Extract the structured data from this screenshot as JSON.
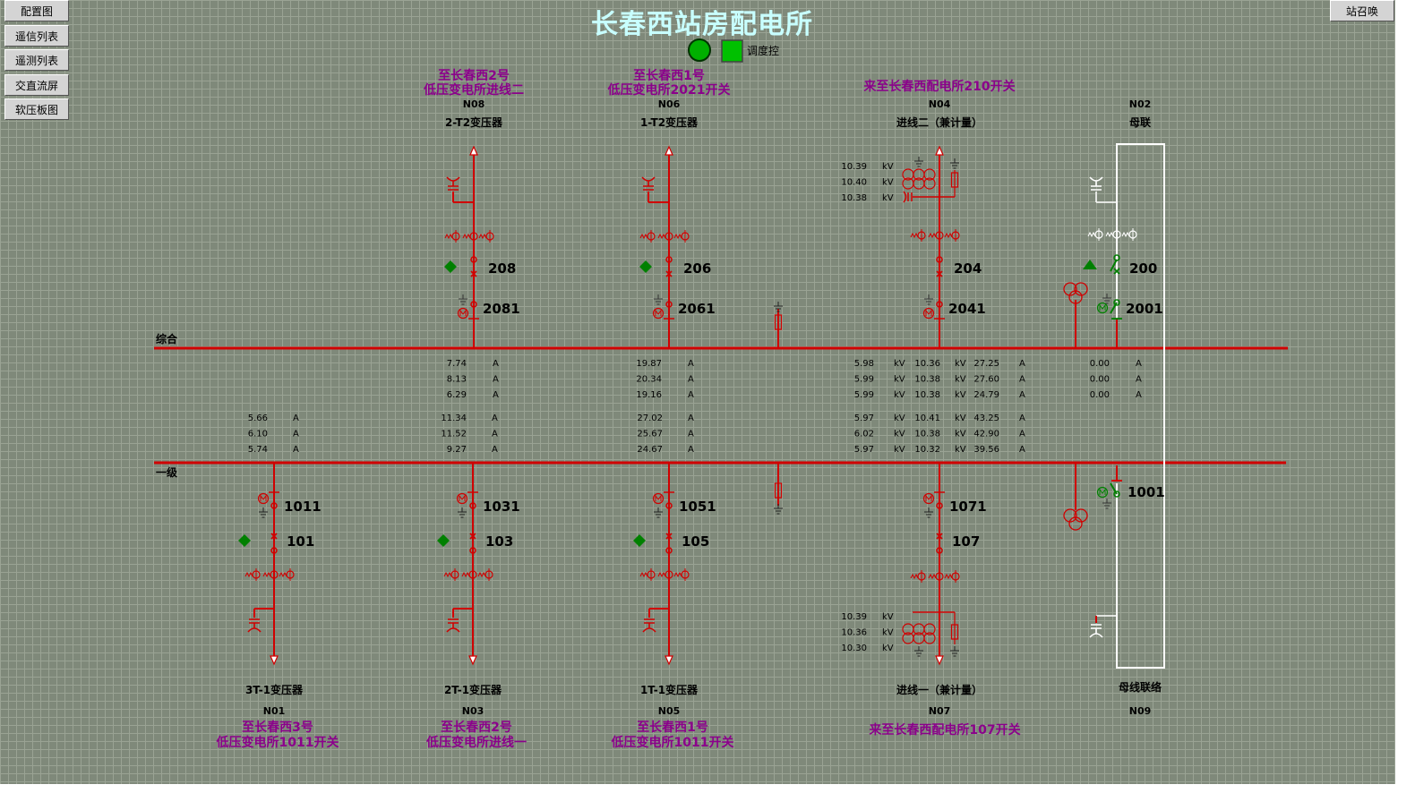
{
  "title": "长春西站房配电所",
  "nav": [
    "配置图",
    "遥信列表",
    "遥测列表",
    "交直流屏",
    "软压板图"
  ],
  "recall_button": "站召唤",
  "control": {
    "label": "调度控",
    "status_color": "#00c000"
  },
  "colors": {
    "energized": "#d00000",
    "dest_text": "#8b008b",
    "idle": "#ffffff",
    "closed_status": "#008000"
  },
  "buses": {
    "upper": "综合",
    "lower": "一级"
  },
  "top_feeders": [
    {
      "id": "N08",
      "name": "2-T2变压器",
      "dest": [
        "至长春西2号",
        "低压变电所进线二"
      ],
      "breaker": "208",
      "switch": "2081",
      "currents": [
        "7.74",
        "8.13",
        "6.29"
      ],
      "unit": "A"
    },
    {
      "id": "N06",
      "name": "1-T2变压器",
      "dest": [
        "至长春西1号",
        "低压变电所2021开关"
      ],
      "breaker": "206",
      "switch": "2061",
      "currents": [
        "19.87",
        "20.34",
        "19.16"
      ],
      "unit": "A"
    }
  ],
  "incomer2": {
    "id": "N04",
    "name": "进线二（兼计量）",
    "dest": "来至长春西配电所210开关",
    "breaker": "204",
    "switch": "2041",
    "pt_voltages": [
      "10.39",
      "10.40",
      "10.38"
    ],
    "rows": [
      [
        "5.98",
        "kV",
        "10.36",
        "kV",
        "27.25",
        "A"
      ],
      [
        "5.99",
        "kV",
        "10.38",
        "kV",
        "27.60",
        "A"
      ],
      [
        "5.99",
        "kV",
        "10.38",
        "kV",
        "24.79",
        "A"
      ]
    ]
  },
  "bus_tie": {
    "id": "N02",
    "name": "母联",
    "breaker": "200",
    "switch": "2001",
    "currents": [
      "0.00",
      "0.00",
      "0.00"
    ],
    "unit": "A"
  },
  "bottom_feeders": [
    {
      "id": "N01",
      "name": "3T-1变压器",
      "dest": [
        "至长春西3号",
        "低压变电所1011开关"
      ],
      "breaker": "101",
      "switch": "1011",
      "currents": [
        "5.66",
        "6.10",
        "5.74"
      ],
      "unit": "A"
    },
    {
      "id": "N03",
      "name": "2T-1变压器",
      "dest": [
        "至长春西2号",
        "低压变电所进线一"
      ],
      "breaker": "103",
      "switch": "1031",
      "currents": [
        "11.34",
        "11.52",
        "9.27"
      ],
      "unit": "A"
    },
    {
      "id": "N05",
      "name": "1T-1变压器",
      "dest": [
        "至长春西1号",
        "低压变电所1011开关"
      ],
      "breaker": "105",
      "switch": "1051",
      "currents": [
        "27.02",
        "25.67",
        "24.67"
      ],
      "unit": "A"
    }
  ],
  "incomer1": {
    "id": "N07",
    "name": "进线一（兼计量）",
    "dest": "来至长春西配电所107开关",
    "breaker": "107",
    "switch": "1071",
    "pt_voltages": [
      "10.39",
      "10.36",
      "10.30"
    ],
    "rows": [
      [
        "5.97",
        "kV",
        "10.41",
        "kV",
        "43.25",
        "A"
      ],
      [
        "6.02",
        "kV",
        "10.38",
        "kV",
        "42.90",
        "A"
      ],
      [
        "5.97",
        "kV",
        "10.32",
        "kV",
        "39.56",
        "A"
      ]
    ]
  },
  "bus_link": {
    "id": "N09",
    "name": "母线联络",
    "switch": "1001"
  },
  "pt_unit": "kV"
}
